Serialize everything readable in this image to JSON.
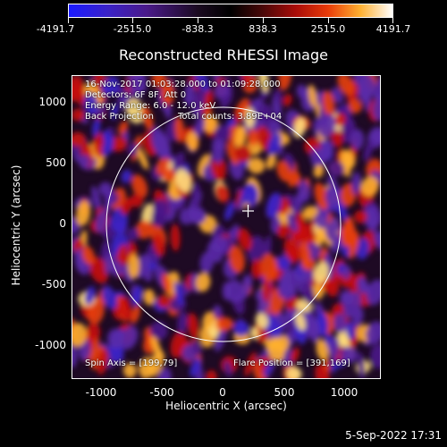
{
  "colorbar": {
    "ticks": [
      "-4191.7",
      "-2515.0",
      "-838.3",
      "838.3",
      "2515.0",
      "4191.7"
    ]
  },
  "title": "Reconstructed RHESSI Image",
  "annotations": {
    "time_range": "16-Nov-2017 01:03:28.000 to 01:09:28.000",
    "detectors": "Detectors: 6F 8F, Att 0",
    "energy_range": "Energy Range: 6.0 - 12.0 keV",
    "method": "Back Projection",
    "total_counts": "Total counts: 3.89E+04",
    "spin_axis": "Spin Axis = [199,79]",
    "flare_position": "Flare Position = [391,169]"
  },
  "axes": {
    "xlabel": "Heliocentric X (arcsec)",
    "ylabel": "Heliocentric Y (arcsec)",
    "xticks": [
      "-1000",
      "-500",
      "0",
      "500",
      "1000"
    ],
    "yticks": [
      "1000",
      "500",
      "0",
      "-500",
      "-1000"
    ]
  },
  "datestamp": "5-Sep-2022 17:31",
  "colors": {
    "cold": "#3a22c8",
    "hot": "#ffb030",
    "red": "#c81208"
  }
}
